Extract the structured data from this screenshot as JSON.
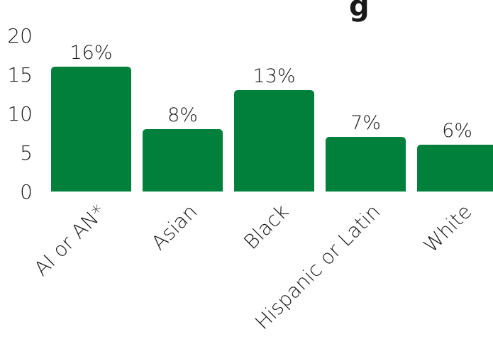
{
  "chart_data": {
    "type": "bar",
    "title": "",
    "title_fragment": "g",
    "xlabel": "",
    "ylabel": "",
    "categories": [
      "AI or AN*",
      "Asian",
      "Black",
      "Hispanic or Latin",
      "White"
    ],
    "values": [
      16,
      8,
      13,
      7,
      6
    ],
    "data_labels": [
      "16%",
      "8%",
      "13%",
      "7%",
      "6%"
    ],
    "ylim": [
      0,
      20
    ],
    "yticks": [
      0,
      5,
      10,
      15,
      20
    ],
    "grid": false,
    "legend": "none",
    "colors": {
      "bar": "#00803A",
      "text": "#1a1a1a"
    }
  }
}
